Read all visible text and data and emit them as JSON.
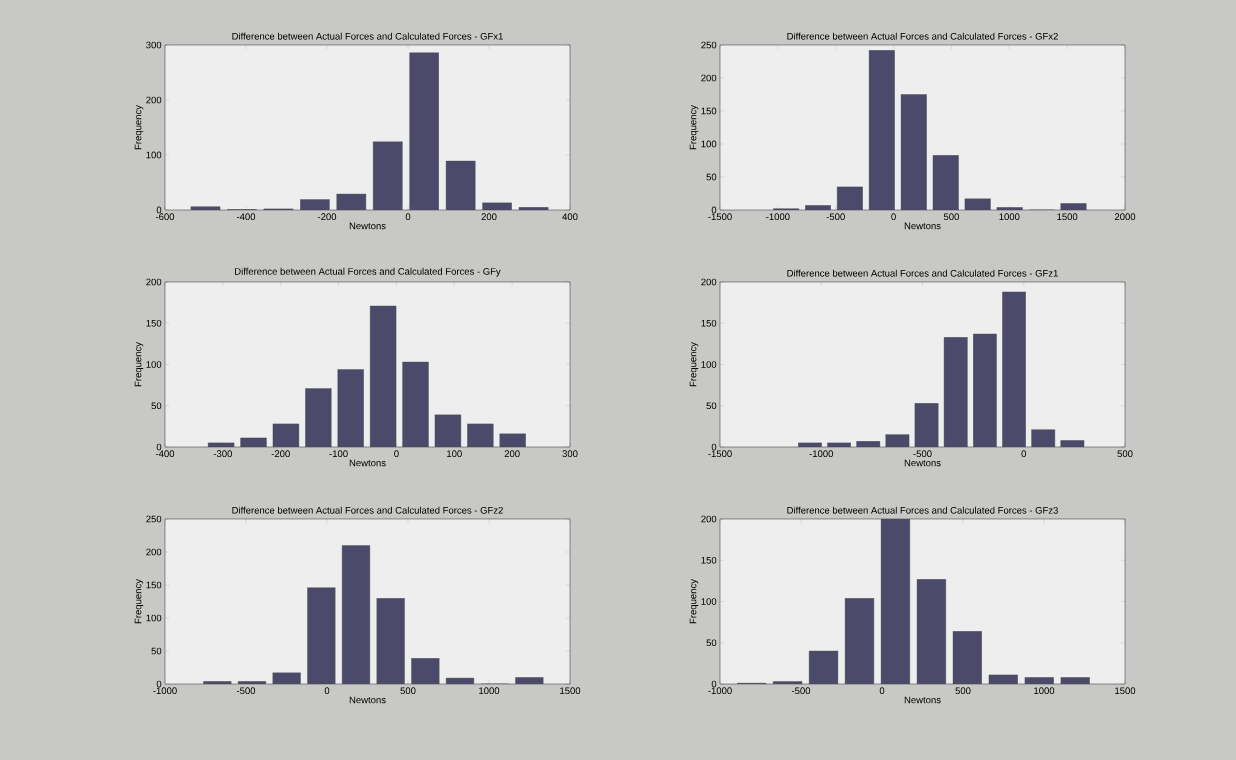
{
  "chart_data": [
    {
      "type": "histogram",
      "title": "Difference between Actual Forces and Calculated Forces - GFx1",
      "xlabel": "Newtons",
      "ylabel": "Frequency",
      "color": "#4b4a6b",
      "bins": [
        -545,
        -455,
        -365,
        -275,
        -185,
        -95,
        -5,
        85,
        175,
        265,
        355
      ],
      "values": [
        6,
        1,
        2,
        19,
        29,
        124,
        286,
        89,
        13,
        5
      ],
      "xlim": [
        -600,
        400
      ],
      "ylim": [
        0,
        300
      ],
      "xticks": [
        -600,
        -400,
        -200,
        0,
        200,
        400
      ],
      "yticks": [
        0,
        100,
        200,
        300
      ]
    },
    {
      "type": "histogram",
      "title": "Difference between Actual Forces and Calculated Forces - GFx2",
      "xlabel": "Newtons",
      "ylabel": "Frequency",
      "color": "#4b4a6b",
      "bins": [
        -1067,
        -791,
        -515,
        -239,
        37,
        313,
        589,
        865,
        1141,
        1417,
        1693
      ],
      "values": [
        2,
        7,
        35,
        242,
        175,
        83,
        17,
        4,
        0,
        10
      ],
      "xlim": [
        -1500,
        2000
      ],
      "ylim": [
        0,
        250
      ],
      "xticks": [
        -1500,
        -1000,
        -500,
        0,
        500,
        1000,
        1500,
        2000
      ],
      "yticks": [
        0,
        50,
        100,
        150,
        200,
        250
      ]
    },
    {
      "type": "histogram",
      "title": "Difference between Actual Forces and Calculated Forces - GFy",
      "xlabel": "Newtons",
      "ylabel": "Frequency",
      "color": "#4b4a6b",
      "bins": [
        -331,
        -275,
        -219,
        -163,
        -107,
        -51,
        5,
        61,
        117,
        173,
        229
      ],
      "values": [
        5,
        11,
        28,
        71,
        94,
        171,
        103,
        39,
        28,
        16
      ],
      "xlim": [
        -400,
        300
      ],
      "ylim": [
        0,
        200
      ],
      "xticks": [
        -400,
        -300,
        -200,
        -100,
        0,
        100,
        200,
        300
      ],
      "yticks": [
        0,
        50,
        100,
        150,
        200
      ]
    },
    {
      "type": "histogram",
      "title": "Difference between Actual Forces and Calculated Forces - GFz1",
      "xlabel": "Newtons",
      "ylabel": "Frequency",
      "color": "#4b4a6b",
      "bins": [
        -1128,
        -984,
        -840,
        -696,
        -552,
        -408,
        -264,
        -120,
        24,
        168,
        312
      ],
      "values": [
        5,
        5,
        7,
        15,
        53,
        133,
        137,
        188,
        21,
        8
      ],
      "xlim": [
        -1500,
        500
      ],
      "ylim": [
        0,
        200
      ],
      "xticks": [
        -1500,
        -1000,
        -500,
        0,
        500
      ],
      "yticks": [
        0,
        50,
        100,
        150,
        200
      ]
    },
    {
      "type": "histogram",
      "title": "Difference between Actual Forces and Calculated Forces - GFz2",
      "xlabel": "Newtons",
      "ylabel": "Frequency",
      "color": "#4b4a6b",
      "bins": [
        -784,
        -570,
        -356,
        -142,
        72,
        286,
        500,
        714,
        928,
        1142,
        1356
      ],
      "values": [
        4,
        4,
        17,
        146,
        210,
        130,
        39,
        9,
        0,
        10
      ],
      "xlim": [
        -1000,
        1500
      ],
      "ylim": [
        0,
        250
      ],
      "xticks": [
        -1000,
        -500,
        0,
        500,
        1000,
        1500
      ],
      "yticks": [
        0,
        50,
        100,
        150,
        200,
        250
      ]
    },
    {
      "type": "histogram",
      "title": "Difference between Actual Forces and Calculated Forces - GFz3",
      "xlabel": "Newtons",
      "ylabel": "Frequency",
      "color": "#4b4a6b",
      "bins": [
        -916,
        -694,
        -472,
        -250,
        -28,
        194,
        416,
        638,
        860,
        1082,
        1304
      ],
      "values": [
        1,
        3,
        40,
        104,
        200,
        127,
        64,
        11,
        8,
        8
      ],
      "xlim": [
        -1000,
        1500
      ],
      "ylim": [
        0,
        200
      ],
      "xticks": [
        -1000,
        -500,
        0,
        500,
        1000,
        1500
      ],
      "yticks": [
        0,
        50,
        100,
        150,
        200
      ]
    }
  ]
}
